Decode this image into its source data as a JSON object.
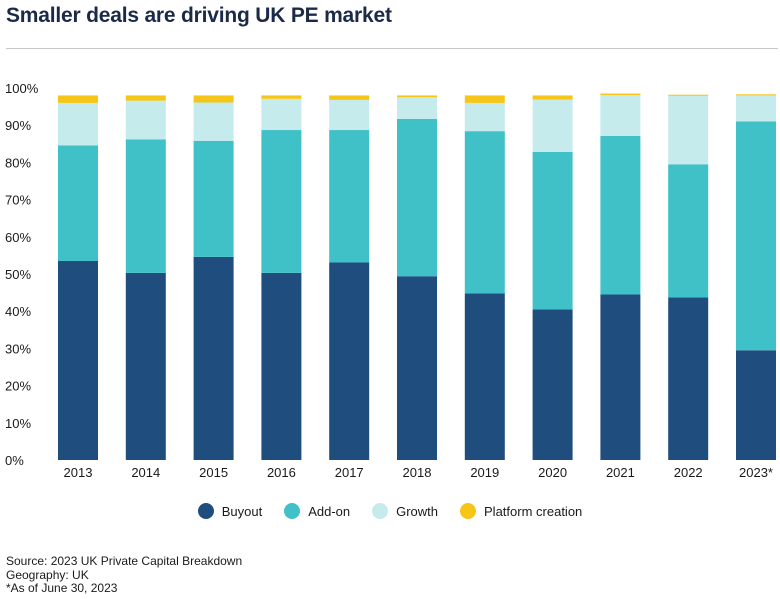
{
  "header": {
    "title": "Smaller deals are driving UK PE market"
  },
  "colors": {
    "Buyout": "#1f4e7e",
    "Add-on": "#40c1c8",
    "Growth": "#c5ebec",
    "Platform creation": "#f5c518"
  },
  "chart_data": {
    "type": "bar",
    "stacked": true,
    "categories": [
      "2013",
      "2014",
      "2015",
      "2016",
      "2017",
      "2018",
      "2019",
      "2020",
      "2021",
      "2022",
      "2023*"
    ],
    "series": [
      {
        "name": "Buyout",
        "values": [
          53.5,
          50.3,
          54.6,
          50.3,
          53.1,
          49.4,
          44.8,
          40.5,
          44.5,
          43.7,
          29.5
        ]
      },
      {
        "name": "Add-on",
        "values": [
          31.1,
          35.9,
          31.2,
          38.4,
          35.6,
          42.3,
          43.6,
          42.3,
          42.6,
          35.8,
          61.5
        ]
      },
      {
        "name": "Growth",
        "values": [
          11.4,
          10.4,
          10.3,
          8.4,
          8.1,
          5.8,
          7.6,
          14.1,
          11.0,
          18.4,
          7.0
        ]
      },
      {
        "name": "Platform creation",
        "values": [
          2.0,
          1.4,
          1.9,
          0.9,
          1.2,
          0.5,
          2.0,
          1.1,
          0.4,
          0.3,
          0.3
        ]
      }
    ],
    "ylim": [
      0,
      100
    ],
    "yticks": [
      "0%",
      "10%",
      "20%",
      "30%",
      "40%",
      "50%",
      "60%",
      "70%",
      "80%",
      "90%",
      "100%"
    ],
    "grid": false,
    "legend_position": "bottom"
  },
  "notes": {
    "source": "Source: 2023 UK Private Capital Breakdown",
    "geography": "Geography: UK",
    "asof": "*As of June 30, 2023"
  }
}
